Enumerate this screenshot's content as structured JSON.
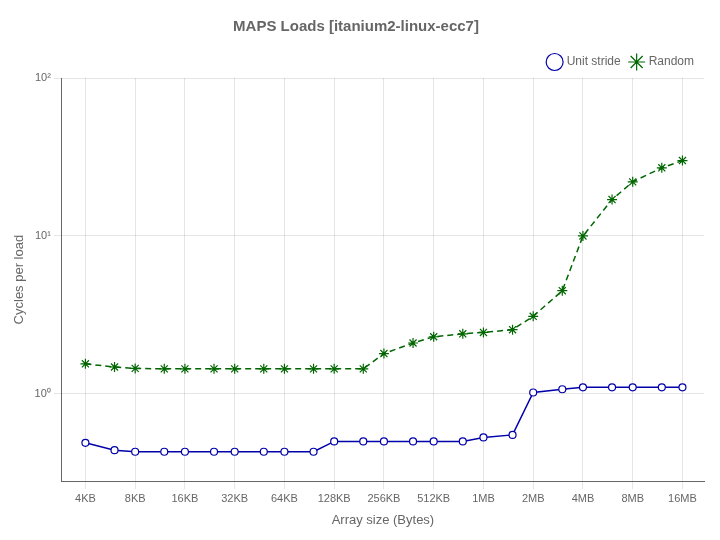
{
  "chart_data": {
    "type": "line",
    "title": "MAPS Loads [itanium2-linux-ecc7]",
    "xlabel": "Array size (Bytes)",
    "ylabel": "Cycles per load",
    "x": [
      4096,
      6144,
      8192,
      12288,
      16384,
      24576,
      32768,
      49152,
      65536,
      98304,
      131072,
      196608,
      262144,
      393216,
      524288,
      786432,
      1048576,
      1572864,
      2097152,
      3145728,
      4194304,
      6291456,
      8388608,
      12582912,
      16777216
    ],
    "series": [
      {
        "name": "Unit stride",
        "color": "#0000aa",
        "marker": "circle",
        "line_style": "solid",
        "values": [
          0.49,
          0.44,
          0.43,
          0.43,
          0.43,
          0.43,
          0.43,
          0.43,
          0.43,
          0.43,
          0.5,
          0.5,
          0.5,
          0.5,
          0.5,
          0.5,
          0.53,
          0.55,
          1.02,
          1.07,
          1.1,
          1.1,
          1.1,
          1.1,
          1.1
        ]
      },
      {
        "name": "Random",
        "color": "#006600",
        "marker": "star",
        "line_style": "dashed",
        "values": [
          1.55,
          1.48,
          1.45,
          1.44,
          1.44,
          1.44,
          1.44,
          1.44,
          1.44,
          1.44,
          1.44,
          1.44,
          1.8,
          2.1,
          2.3,
          2.4,
          2.45,
          2.55,
          3.1,
          4.5,
          10.0,
          17.0,
          22.0,
          27.0,
          30.0
        ]
      }
    ],
    "log": true,
    "xlim": [
      2949.12,
      22649241.6
    ],
    "xticks": [
      {
        "value": 4096,
        "label": "4KB"
      },
      {
        "value": 8192,
        "label": "8KB"
      },
      {
        "value": 16384,
        "label": "16KB"
      },
      {
        "value": 32768,
        "label": "32KB"
      },
      {
        "value": 65536,
        "label": "64KB"
      },
      {
        "value": 131072,
        "label": "128KB"
      },
      {
        "value": 262144,
        "label": "256KB"
      },
      {
        "value": 524288,
        "label": "512KB"
      },
      {
        "value": 1048576,
        "label": "1MB"
      },
      {
        "value": 2097152,
        "label": "2MB"
      },
      {
        "value": 4194304,
        "label": "4MB"
      },
      {
        "value": 8388608,
        "label": "8MB"
      },
      {
        "value": 16777216,
        "label": "16MB"
      }
    ],
    "ylim": [
      0.28,
      100
    ],
    "yticks": [
      {
        "value": 1,
        "label": "10⁰"
      },
      {
        "value": 10,
        "label": "10¹"
      },
      {
        "value": 100,
        "label": "10²"
      }
    ],
    "grid": true,
    "legend": "upper right"
  }
}
